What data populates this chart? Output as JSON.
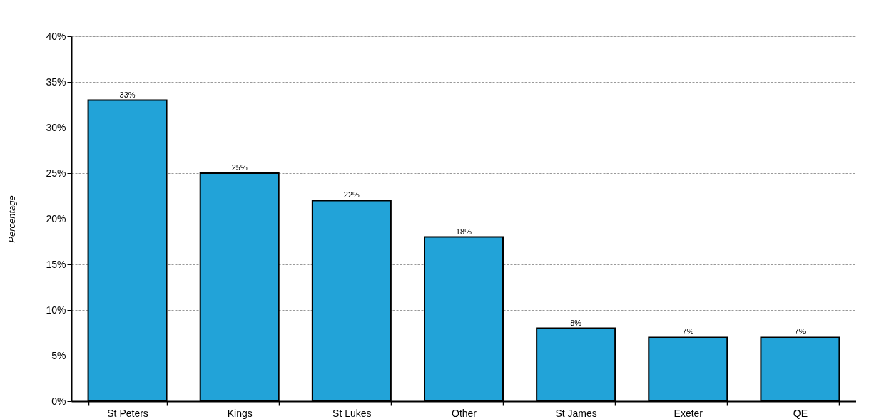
{
  "chart_data": {
    "type": "bar",
    "ylabel": "Percentage",
    "categories": [
      "St Peters",
      "Kings",
      "St Lukes",
      "Other",
      "St James",
      "Exeter",
      "QE"
    ],
    "values": [
      33,
      25,
      22,
      18,
      8,
      7,
      7
    ],
    "value_labels": [
      "33%",
      "25%",
      "22%",
      "18%",
      "8%",
      "7%",
      "7%"
    ],
    "color": "#22a3d8",
    "ylim": [
      0,
      40
    ],
    "yticks": [
      {
        "value": 0,
        "label": "0%"
      },
      {
        "value": 5,
        "label": "5%"
      },
      {
        "value": 10,
        "label": "10%"
      },
      {
        "value": 15,
        "label": "15%"
      },
      {
        "value": 20,
        "label": "20%"
      },
      {
        "value": 25,
        "label": "25%"
      },
      {
        "value": 30,
        "label": "30%"
      },
      {
        "value": 35,
        "label": "35%"
      },
      {
        "value": 40,
        "label": "40%"
      }
    ],
    "grid": "y"
  }
}
